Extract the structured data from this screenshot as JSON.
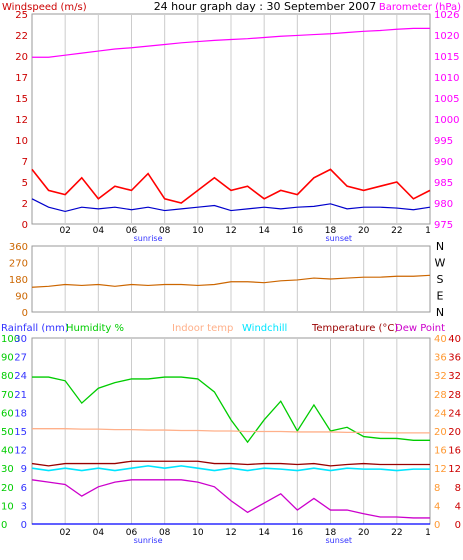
{
  "title": "24 hour graph day : 30 September 2007",
  "time_ticks": [
    "02",
    "04",
    "06",
    "08",
    "10",
    "12",
    "14",
    "16",
    "18",
    "20",
    "22",
    "1"
  ],
  "sunrise_label": "sunrise",
  "sunset_label": "sunset",
  "colors": {
    "wind_red": "#ff0000",
    "wind_avg_blue": "#0000cc",
    "baro_magenta": "#ff00ff",
    "wind_dir_orange": "#cc6600",
    "humidity_green": "#00cc00",
    "indoor_temp": "#ffb08a",
    "windchill_cyan": "#00e5ff",
    "temperature_darkred": "#990000",
    "dewpoint_magenta": "#cc00cc",
    "rain_blue": "#0000ff",
    "axis_blue_text": "#3333ff",
    "axis_orange_text": "#ff9933",
    "axis_red_text": "#cc0000",
    "grid": "#cccccc"
  },
  "chart_data": [
    {
      "type": "line",
      "panel": "wind_baro",
      "ylabel_left": "Windspeed (m/s)",
      "ylabel_right": "Barometer (hPa)",
      "yticks_left": [
        "0",
        "2",
        "5",
        "7",
        "10",
        "12",
        "15",
        "17",
        "20",
        "22",
        "25"
      ],
      "yticks_right": [
        "975",
        "980",
        "985",
        "990",
        "995",
        "1000",
        "1005",
        "1010",
        "1015",
        "1020",
        "1026"
      ],
      "ylim_left": [
        0,
        25
      ],
      "ylim_right": [
        975,
        1026
      ],
      "x_hours": [
        0,
        1,
        2,
        3,
        4,
        5,
        6,
        7,
        8,
        9,
        10,
        11,
        12,
        13,
        14,
        15,
        16,
        17,
        18,
        19,
        20,
        21,
        22,
        23,
        24
      ],
      "series": [
        {
          "name": "Barometer (hPa)",
          "axis": "right",
          "values": [
            1015.5,
            1015.5,
            1016.0,
            1016.5,
            1017.0,
            1017.5,
            1017.8,
            1018.2,
            1018.6,
            1019.0,
            1019.3,
            1019.6,
            1019.8,
            1020.0,
            1020.3,
            1020.6,
            1020.8,
            1021.0,
            1021.2,
            1021.5,
            1021.8,
            1022.0,
            1022.3,
            1022.5,
            1022.5
          ]
        },
        {
          "name": "Wind gust (m/s)",
          "axis": "left",
          "values": [
            6.5,
            4.0,
            3.5,
            5.5,
            3.0,
            4.5,
            4.0,
            6.0,
            3.0,
            2.5,
            4.0,
            5.5,
            4.0,
            4.5,
            3.0,
            4.0,
            3.5,
            5.5,
            6.5,
            4.5,
            4.0,
            4.5,
            5.0,
            3.0,
            4.0
          ]
        },
        {
          "name": "Wind average (m/s)",
          "axis": "left",
          "values": [
            3.0,
            2.0,
            1.5,
            2.0,
            1.8,
            2.0,
            1.7,
            2.0,
            1.6,
            1.8,
            2.0,
            2.2,
            1.6,
            1.8,
            2.0,
            1.8,
            2.0,
            2.1,
            2.4,
            1.8,
            2.0,
            2.0,
            1.9,
            1.7,
            2.0
          ]
        }
      ]
    },
    {
      "type": "line",
      "panel": "wind_direction",
      "yticks_left": [
        "0",
        "90",
        "180",
        "270",
        "360"
      ],
      "ylim": [
        0,
        360
      ],
      "compass_labels": [
        "N",
        "W",
        "S",
        "E",
        "N"
      ],
      "x_hours": [
        0,
        1,
        2,
        3,
        4,
        5,
        6,
        7,
        8,
        9,
        10,
        11,
        12,
        13,
        14,
        15,
        16,
        17,
        18,
        19,
        20,
        21,
        22,
        23,
        24
      ],
      "series": [
        {
          "name": "Wind direction (°)",
          "values": [
            135,
            140,
            150,
            145,
            150,
            140,
            150,
            145,
            150,
            150,
            145,
            150,
            165,
            165,
            160,
            170,
            175,
            185,
            180,
            185,
            190,
            190,
            195,
            195,
            200
          ]
        }
      ]
    },
    {
      "type": "line",
      "panel": "temp_humidity",
      "legend": [
        "Rainfall (mm)",
        "Humidity %",
        "Indoor temp",
        "Windchill",
        "Temperature (°C)",
        "Dew Point"
      ],
      "yticks_rain": [
        "0",
        "3",
        "6",
        "9",
        "12",
        "15",
        "18",
        "21",
        "24",
        "27",
        "30"
      ],
      "yticks_humidity": [
        "0",
        "10",
        "20",
        "30",
        "40",
        "50",
        "60",
        "70",
        "80",
        "90",
        "100"
      ],
      "yticks_indoor": [
        "0",
        "4",
        "8",
        "12",
        "16",
        "20",
        "24",
        "28",
        "32",
        "36",
        "40"
      ],
      "yticks_temp": [
        "0",
        "4",
        "8",
        "12",
        "16",
        "20",
        "24",
        "28",
        "32",
        "36",
        "40"
      ],
      "ylim_temp": [
        0,
        40
      ],
      "ylim_humidity": [
        0,
        100
      ],
      "x_hours": [
        0,
        1,
        2,
        3,
        4,
        5,
        6,
        7,
        8,
        9,
        10,
        11,
        12,
        13,
        14,
        15,
        16,
        17,
        18,
        19,
        20,
        21,
        22,
        23,
        24
      ],
      "series": [
        {
          "name": "Humidity %",
          "axis": "humidity",
          "values": [
            79,
            79,
            77,
            65,
            73,
            76,
            78,
            78,
            79,
            79,
            78,
            71,
            56,
            44,
            56,
            66,
            50,
            64,
            50,
            52,
            47,
            46,
            46,
            45,
            45
          ]
        },
        {
          "name": "Indoor temp",
          "axis": "temp",
          "values": [
            20.5,
            20.5,
            20.5,
            20.4,
            20.4,
            20.3,
            20.3,
            20.2,
            20.2,
            20.1,
            20.1,
            20.0,
            20.0,
            19.9,
            19.9,
            19.9,
            19.8,
            19.8,
            19.8,
            19.7,
            19.7,
            19.7,
            19.6,
            19.6,
            19.6
          ]
        },
        {
          "name": "Temperature (°C)",
          "axis": "temp",
          "values": [
            13.0,
            12.5,
            13.0,
            13.0,
            13.0,
            13.0,
            13.5,
            13.5,
            13.5,
            13.5,
            13.5,
            13.0,
            13.0,
            12.8,
            13.0,
            13.0,
            12.8,
            13.0,
            12.5,
            12.8,
            13.0,
            12.8,
            12.8,
            12.8,
            12.8
          ]
        },
        {
          "name": "Windchill",
          "axis": "temp",
          "values": [
            12.0,
            11.5,
            12.0,
            11.5,
            12.0,
            11.5,
            12.0,
            12.5,
            12.0,
            12.5,
            12.0,
            11.5,
            12.0,
            11.5,
            12.0,
            11.8,
            11.5,
            12.0,
            11.5,
            12.0,
            11.8,
            11.8,
            11.5,
            11.8,
            11.8
          ]
        },
        {
          "name": "Dew Point",
          "axis": "temp",
          "values": [
            9.5,
            9.0,
            8.5,
            6.0,
            8.0,
            9.0,
            9.5,
            9.5,
            9.5,
            9.5,
            9.0,
            8.0,
            5.0,
            2.5,
            4.5,
            6.5,
            3.0,
            5.5,
            3.0,
            3.0,
            2.2,
            1.5,
            1.5,
            1.3,
            1.3
          ]
        },
        {
          "name": "Rainfall (mm)",
          "axis": "rain",
          "values": [
            0,
            0,
            0,
            0,
            0,
            0,
            0,
            0,
            0,
            0,
            0,
            0,
            0,
            0,
            0,
            0,
            0,
            0,
            0,
            0,
            0,
            0,
            0,
            0,
            0
          ]
        }
      ]
    }
  ]
}
